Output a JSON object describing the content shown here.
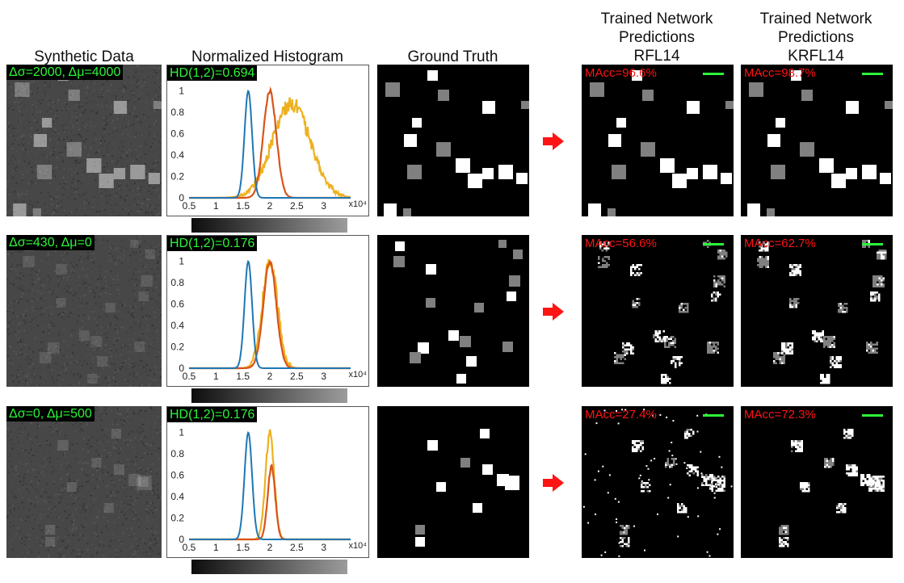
{
  "headers": {
    "synthetic": "Synthetic Data",
    "histogram": "Normalized Histogram",
    "ground_truth": "Ground Truth",
    "rfl14": [
      "Trained Network",
      "Predictions",
      "RFL14"
    ],
    "krfl14": [
      "Trained Network",
      "Predictions",
      "KRFL14"
    ]
  },
  "colors": {
    "tag_text": "#2df53a",
    "macc_text": "#ff1414",
    "arrow": "#ff1414",
    "series1": "#1f77b4",
    "series2": "#d95319",
    "series3": "#edb120"
  },
  "axis_exponent": "x10⁴",
  "rows": [
    {
      "params": "Δσ=2000, Δμ=4000",
      "hd": "HD(1,2)=0.694",
      "macc_rfl": "MAcc=96.6%",
      "macc_krfl": "MAcc=98.7%",
      "chart_data": {
        "type": "line",
        "x_ticks": [
          "0.5",
          "1",
          "1.5",
          "2",
          "2.5",
          "3"
        ],
        "y_ticks": [
          "0",
          "0.2",
          "0.4",
          "0.6",
          "0.8",
          "1"
        ],
        "xlim": [
          0.5,
          3.5
        ],
        "ylim": [
          0,
          1.05
        ],
        "series": [
          {
            "mean": 1.6,
            "sd": 0.07,
            "peak": 1.0,
            "noise": 0.0
          },
          {
            "mean": 2.0,
            "sd": 0.12,
            "peak": 1.0,
            "noise": 0.02
          },
          {
            "mean": 2.4,
            "sd": 0.35,
            "peak": 0.88,
            "noise": 0.08
          }
        ]
      }
    },
    {
      "params": "Δσ=430, Δμ=0",
      "hd": "HD(1,2)=0.176",
      "macc_rfl": "MAcc=56.6%",
      "macc_krfl": "MAcc=62.7%",
      "chart_data": {
        "type": "line",
        "x_ticks": [
          "0.5",
          "1",
          "1.5",
          "2",
          "2.5",
          "3"
        ],
        "y_ticks": [
          "0",
          "0.2",
          "0.4",
          "0.6",
          "0.8",
          "1"
        ],
        "xlim": [
          0.5,
          3.5
        ],
        "ylim": [
          0,
          1.05
        ],
        "series": [
          {
            "mean": 1.6,
            "sd": 0.07,
            "peak": 1.0,
            "noise": 0.0
          },
          {
            "mean": 2.0,
            "sd": 0.12,
            "peak": 1.0,
            "noise": 0.02
          },
          {
            "mean": 2.0,
            "sd": 0.14,
            "peak": 1.0,
            "noise": 0.08
          }
        ]
      }
    },
    {
      "params": "Δσ=0, Δμ=500",
      "hd": "HD(1,2)=0.176",
      "macc_rfl": "MAcc=27.4%",
      "macc_krfl": "MAcc=72.3%",
      "chart_data": {
        "type": "line",
        "x_ticks": [
          "0.5",
          "1",
          "1.5",
          "2",
          "2.5",
          "3"
        ],
        "y_ticks": [
          "0",
          "0.2",
          "0.4",
          "0.6",
          "0.8",
          "1"
        ],
        "xlim": [
          0.5,
          3.5
        ],
        "ylim": [
          0,
          1.05
        ],
        "series": [
          {
            "mean": 1.6,
            "sd": 0.07,
            "peak": 1.0,
            "noise": 0.0
          },
          {
            "mean": 2.03,
            "sd": 0.07,
            "peak": 0.68,
            "noise": 0.02
          },
          {
            "mean": 2.0,
            "sd": 0.08,
            "peak": 1.0,
            "noise": 0.05
          }
        ]
      }
    }
  ]
}
